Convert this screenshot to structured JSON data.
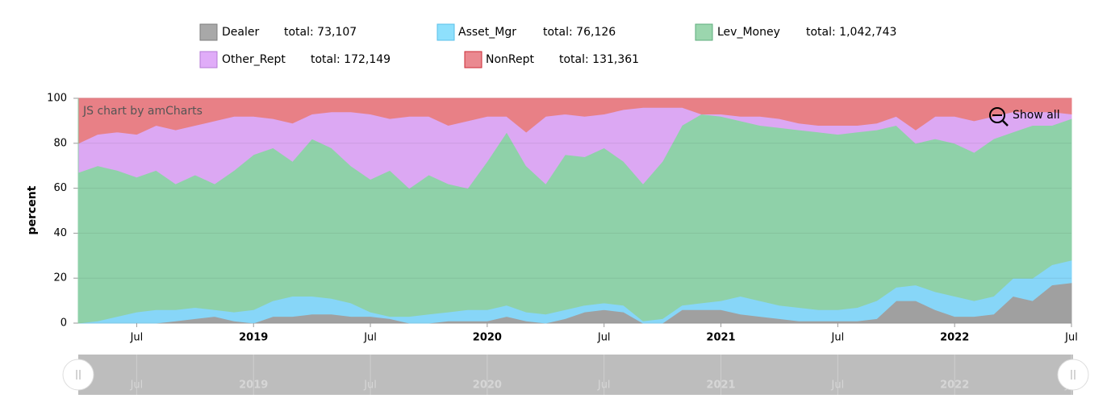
{
  "chart_data": {
    "type": "area",
    "stacked": "percent",
    "y_label": "percent",
    "credit": "JS chart by amCharts",
    "zoom_button": "Show all",
    "ylim": [
      0,
      100
    ],
    "yticks": [
      0,
      20,
      40,
      60,
      80,
      100
    ],
    "grid": true,
    "x": [
      "2018-04",
      "2018-05",
      "2018-06",
      "2018-07",
      "2018-08",
      "2018-09",
      "2018-10",
      "2018-11",
      "2018-12",
      "2019-01",
      "2019-02",
      "2019-03",
      "2019-04",
      "2019-05",
      "2019-06",
      "2019-07",
      "2019-08",
      "2019-09",
      "2019-10",
      "2019-11",
      "2019-12",
      "2020-01",
      "2020-02",
      "2020-03",
      "2020-04",
      "2020-05",
      "2020-06",
      "2020-07",
      "2020-08",
      "2020-09",
      "2020-10",
      "2020-11",
      "2020-12",
      "2021-01",
      "2021-02",
      "2021-03",
      "2021-04",
      "2021-05",
      "2021-06",
      "2021-07",
      "2021-08",
      "2021-09",
      "2021-10",
      "2021-11",
      "2021-12",
      "2022-01",
      "2022-02",
      "2022-03",
      "2022-04",
      "2022-05",
      "2022-06",
      "2022-07"
    ],
    "xticks": [
      {
        "value": "2018-07",
        "label": "Jul"
      },
      {
        "value": "2019-01",
        "label": "2019"
      },
      {
        "value": "2019-07",
        "label": "Jul"
      },
      {
        "value": "2020-01",
        "label": "2020"
      },
      {
        "value": "2020-07",
        "label": "Jul"
      },
      {
        "value": "2021-01",
        "label": "2021"
      },
      {
        "value": "2021-07",
        "label": "Jul"
      },
      {
        "value": "2022-01",
        "label": "2022"
      },
      {
        "value": "2022-07",
        "label": "Jul"
      }
    ],
    "series": [
      {
        "name": "Dealer",
        "total": "total: 73,107",
        "color": "#a0a0a0",
        "swatch": "#a8a8a8",
        "border": "#7d7d7d",
        "values": [
          0,
          0,
          0,
          0,
          0,
          1,
          2,
          3,
          1,
          0,
          3,
          3,
          4,
          4,
          3,
          3,
          2,
          0,
          0,
          1,
          1,
          1,
          3,
          1,
          0,
          2,
          5,
          6,
          5,
          0,
          0,
          6,
          6,
          6,
          4,
          3,
          2,
          1,
          1,
          1,
          1,
          2,
          10,
          10,
          6,
          3,
          3,
          4,
          12,
          10,
          17,
          18
        ]
      },
      {
        "name": "Asset_Mgr",
        "total": "total: 76,126",
        "color": "#87d6f8",
        "swatch": "#8ee0fc",
        "border": "#5bbfe8",
        "values": [
          0,
          1,
          3,
          5,
          6,
          5,
          5,
          3,
          4,
          6,
          7,
          9,
          8,
          7,
          6,
          2,
          1,
          3,
          4,
          4,
          5,
          5,
          5,
          4,
          4,
          4,
          3,
          3,
          3,
          1,
          2,
          2,
          3,
          4,
          8,
          7,
          6,
          6,
          5,
          5,
          6,
          8,
          6,
          7,
          8,
          9,
          7,
          8,
          8,
          10,
          9,
          10
        ]
      },
      {
        "name": "Lev_Money",
        "total": "total: 1,042,743",
        "color": "#8fd1a9",
        "swatch": "#9bd6ae",
        "border": "#5fae7e",
        "values": [
          67,
          69,
          65,
          60,
          62,
          56,
          59,
          56,
          63,
          69,
          68,
          60,
          70,
          67,
          61,
          59,
          65,
          57,
          62,
          57,
          54,
          66,
          77,
          65,
          58,
          69,
          66,
          69,
          64,
          61,
          70,
          80,
          84,
          82,
          78,
          78,
          79,
          79,
          79,
          78,
          78,
          76,
          72,
          63,
          68,
          68,
          66,
          70,
          65,
          68,
          62,
          63
        ]
      },
      {
        "name": "Other_Rept",
        "total": "total: 172,149",
        "color": "#dca8f3",
        "swatch": "#e0acf8",
        "border": "#b57ad6",
        "values": [
          13,
          14,
          17,
          19,
          20,
          24,
          22,
          28,
          24,
          17,
          13,
          17,
          11,
          16,
          24,
          29,
          23,
          32,
          26,
          26,
          30,
          20,
          7,
          15,
          30,
          18,
          18,
          15,
          23,
          34,
          24,
          8,
          0,
          1,
          2,
          4,
          4,
          3,
          3,
          4,
          3,
          3,
          4,
          6,
          10,
          12,
          14,
          10,
          9,
          6,
          6,
          2
        ]
      },
      {
        "name": "NonRept",
        "total": "total: 131,361",
        "color": "#e88086",
        "swatch": "#ea8990",
        "border": "#cc2b36",
        "values": [
          20,
          16,
          15,
          16,
          12,
          14,
          12,
          10,
          8,
          8,
          9,
          11,
          7,
          6,
          6,
          7,
          9,
          8,
          8,
          12,
          10,
          8,
          8,
          15,
          8,
          7,
          8,
          7,
          5,
          4,
          4,
          4,
          7,
          7,
          8,
          8,
          9,
          11,
          12,
          12,
          12,
          11,
          8,
          14,
          8,
          8,
          10,
          8,
          6,
          6,
          6,
          7
        ]
      }
    ]
  }
}
